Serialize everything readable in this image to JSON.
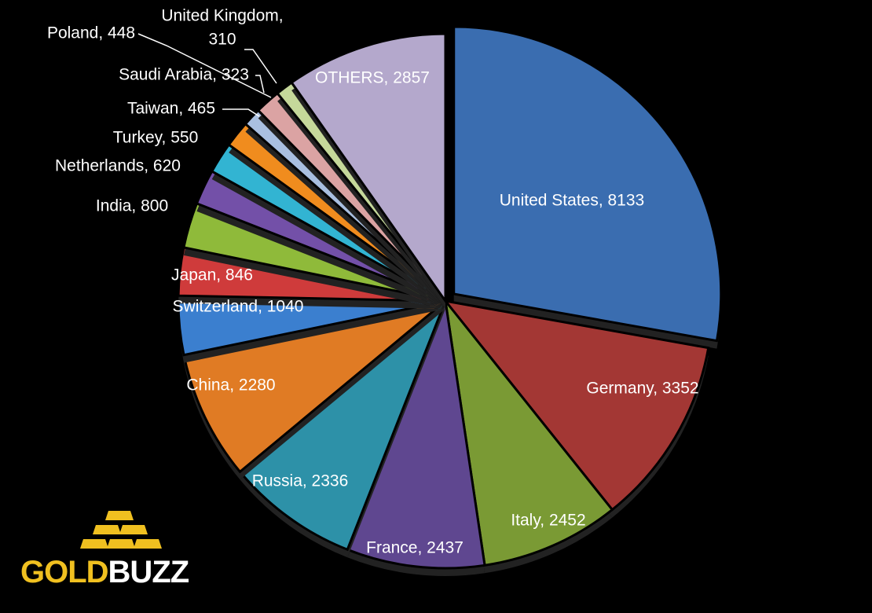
{
  "chart_data": {
    "type": "pie",
    "title": "",
    "slices": [
      {
        "label": "United States",
        "value": 8133,
        "color": "#3a6db0",
        "label_color": "#ffffff"
      },
      {
        "label": "Germany",
        "value": 3352,
        "color": "#a33734",
        "label_color": "#ffffff"
      },
      {
        "label": "Italy",
        "value": 2452,
        "color": "#7a9a34",
        "label_color": "#ffffff"
      },
      {
        "label": "France",
        "value": 2437,
        "color": "#5f4790",
        "label_color": "#ffffff"
      },
      {
        "label": "Russia",
        "value": 2336,
        "color": "#2d91a8",
        "label_color": "#ffffff"
      },
      {
        "label": "China",
        "value": 2280,
        "color": "#e07b24",
        "label_color": "#ffffff"
      },
      {
        "label": "Switzerland",
        "value": 1040,
        "color": "#3b7fcf",
        "label_color": "#ffffff"
      },
      {
        "label": "Japan",
        "value": 846,
        "color": "#cf3b3b",
        "label_color": "#ffffff"
      },
      {
        "label": "India",
        "value": 800,
        "color": "#8fba3a",
        "label_color": "#ffffff"
      },
      {
        "label": "Netherlands",
        "value": 620,
        "color": "#7350a8",
        "label_color": "#ffffff"
      },
      {
        "label": "Turkey",
        "value": 550,
        "color": "#32b4d2",
        "label_color": "#ffffff"
      },
      {
        "label": "Taiwan",
        "value": 465,
        "color": "#f08c1e",
        "label_color": "#ffffff"
      },
      {
        "label": "Saudi Arabia",
        "value": 323,
        "color": "#a9bfe0",
        "label_color": "#ffffff"
      },
      {
        "label": "Poland",
        "value": 448,
        "color": "#dba3a3",
        "label_color": "#ffffff"
      },
      {
        "label": "United Kingdom",
        "value": 310,
        "color": "#c5d89a",
        "label_color": "#ffffff"
      },
      {
        "label": "OTHERS",
        "value": 2857,
        "color": "#b4a8cc",
        "label_color": "#ffffff"
      }
    ],
    "legend": "none",
    "data_labels": "category, value"
  },
  "logo": {
    "word_gold": "GOLD",
    "word_buzz": "BUZZ",
    "gold_color": "#f0c020"
  }
}
